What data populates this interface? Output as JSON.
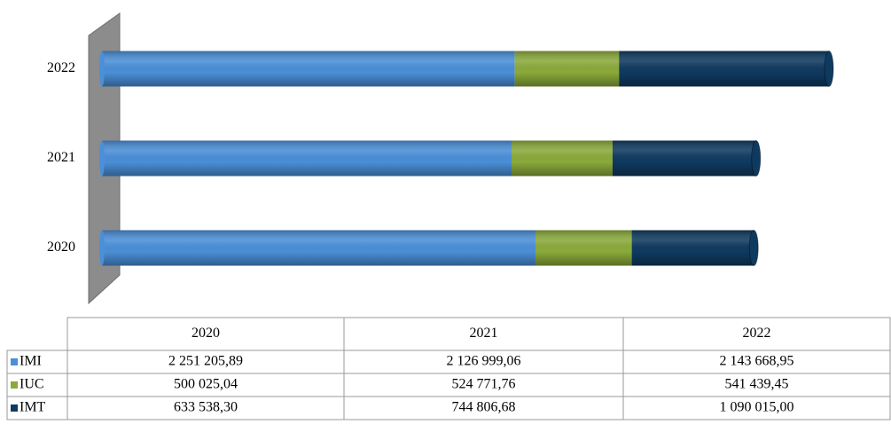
{
  "chart_data": {
    "type": "bar",
    "stacked": true,
    "orientation": "horizontal",
    "categories": [
      "2020",
      "2021",
      "2022"
    ],
    "series": [
      {
        "name": "IMI",
        "color": "#4a8fd8",
        "values": [
          2251205.89,
          2126999.06,
          2143668.95
        ],
        "value_labels": [
          "2 251 205,89",
          "2 126 999,06",
          "2 143 668,95"
        ]
      },
      {
        "name": "IUC",
        "color": "#8aaa3a",
        "values": [
          500025.04,
          524771.76,
          541439.45
        ],
        "value_labels": [
          "500 025,04",
          "524 771,76",
          "541 439,45"
        ]
      },
      {
        "name": "IMT",
        "color": "#0f3a60",
        "values": [
          633538.3,
          744806.68,
          1090015.0
        ],
        "value_labels": [
          "633 538,30",
          "744 806,68",
          "1 090 015,00"
        ]
      }
    ]
  }
}
